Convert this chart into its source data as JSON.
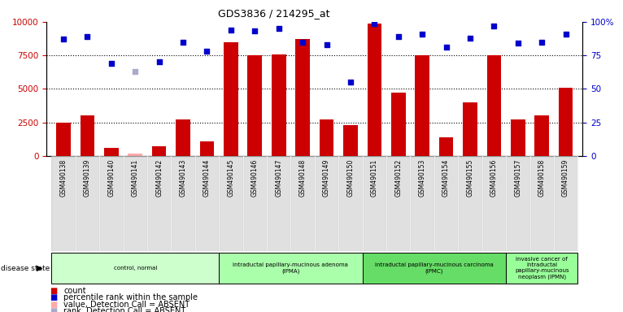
{
  "title": "GDS3836 / 214295_at",
  "samples": [
    "GSM490138",
    "GSM490139",
    "GSM490140",
    "GSM490141",
    "GSM490142",
    "GSM490143",
    "GSM490144",
    "GSM490145",
    "GSM490146",
    "GSM490147",
    "GSM490148",
    "GSM490149",
    "GSM490150",
    "GSM490151",
    "GSM490152",
    "GSM490153",
    "GSM490154",
    "GSM490155",
    "GSM490156",
    "GSM490157",
    "GSM490158",
    "GSM490159"
  ],
  "counts": [
    2500,
    3000,
    600,
    200,
    700,
    2700,
    1100,
    8500,
    7500,
    7600,
    8700,
    2700,
    2300,
    9900,
    4700,
    7500,
    1400,
    4000,
    7500,
    2700,
    3000,
    5100
  ],
  "absent_mask": [
    false,
    false,
    false,
    true,
    false,
    false,
    false,
    false,
    false,
    false,
    false,
    false,
    false,
    false,
    false,
    false,
    false,
    false,
    false,
    false,
    false,
    false
  ],
  "percentile_ranks": [
    87,
    89,
    69,
    63,
    70,
    85,
    78,
    94,
    93,
    95,
    85,
    83,
    55,
    99,
    89,
    91,
    81,
    88,
    97,
    84,
    85,
    91
  ],
  "absent_rank_mask": [
    false,
    false,
    false,
    true,
    false,
    false,
    false,
    false,
    false,
    false,
    false,
    false,
    false,
    false,
    false,
    false,
    false,
    false,
    false,
    false,
    false,
    false
  ],
  "disease_groups": [
    {
      "label": "control, normal",
      "start": 0,
      "end": 7,
      "color": "#ccffcc"
    },
    {
      "label": "intraductal papillary-mucinous adenoma\n(IPMA)",
      "start": 7,
      "end": 13,
      "color": "#aaffaa"
    },
    {
      "label": "intraductal papillary-mucinous carcinoma\n(IPMC)",
      "start": 13,
      "end": 19,
      "color": "#66dd66"
    },
    {
      "label": "invasive cancer of\nintraductal\npapillary-mucinous\nneoplasm (IPMN)",
      "start": 19,
      "end": 22,
      "color": "#99ff99"
    }
  ],
  "bar_color": "#cc0000",
  "absent_bar_color": "#ffaaaa",
  "rank_color": "#0000cc",
  "absent_rank_color": "#aaaacc",
  "yticks_left": [
    0,
    2500,
    5000,
    7500,
    10000
  ],
  "ytick_labels_left": [
    "0",
    "2500",
    "5000",
    "7500",
    "10000"
  ],
  "yticks_right": [
    0,
    25,
    50,
    75,
    100
  ],
  "ytick_labels_right": [
    "0",
    "25",
    "50",
    "75",
    "100%"
  ],
  "legend_items": [
    {
      "label": "count",
      "color": "#cc0000"
    },
    {
      "label": "percentile rank within the sample",
      "color": "#0000cc"
    },
    {
      "label": "value, Detection Call = ABSENT",
      "color": "#ffaaaa"
    },
    {
      "label": "rank, Detection Call = ABSENT",
      "color": "#aaaacc"
    }
  ]
}
